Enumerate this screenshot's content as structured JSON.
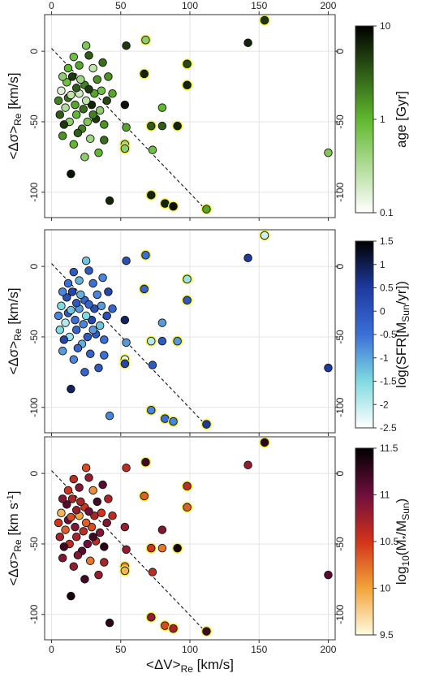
{
  "chart_data": {
    "type": "scatter",
    "x_axis": {
      "label": "<ΔV>",
      "label_sub": "Re",
      "label_unit": " [km/s]",
      "range": [
        -5,
        205
      ],
      "ticks": [
        0,
        50,
        100,
        150,
        200
      ],
      "tick_labels": [
        "0",
        "50",
        "100",
        "150",
        "200"
      ]
    },
    "y_axis": {
      "range": [
        -118,
        26
      ],
      "ticks": [
        0,
        -50,
        -100
      ],
      "tick_labels": [
        "0",
        "-50",
        "-100"
      ]
    },
    "grid": true,
    "reference_line": {
      "style": "dashed",
      "from": [
        0,
        2
      ],
      "to": [
        112,
        -113
      ]
    },
    "panels": [
      {
        "ylabel": "<Δσ>",
        "ylabel_sub": "Re",
        "ylabel_unit": " [km/s]",
        "colorbar": {
          "label": "age [Gyr]",
          "scale": "log",
          "range": [
            0.1,
            10
          ],
          "ticks": [
            "0.1",
            "1",
            "10"
          ],
          "colors": [
            "#ffffff",
            "#5fb82d",
            "#000000"
          ]
        }
      },
      {
        "ylabel": "<Δσ>",
        "ylabel_sub": "Re",
        "ylabel_unit": " [km/s]",
        "colorbar": {
          "label": "log(SFR[M",
          "label_sub": "Sun",
          "label_unit": "/yr])",
          "scale": "linear",
          "range": [
            -2.5,
            1.5
          ],
          "ticks": [
            "-2.5",
            "-2",
            "-1.5",
            "-1",
            "-0.5",
            "0",
            "0.5",
            "1",
            "1.5"
          ],
          "colors": [
            "#ffffff",
            "#7fdbe0",
            "#3b6fd8",
            "#1e3aa0",
            "#000000"
          ]
        }
      },
      {
        "ylabel": "<Δσ>",
        "ylabel_sub": "Re",
        "ylabel_unit": " [km s",
        "ylabel_sup": "-1",
        "ylabel_unit2": "]",
        "colorbar": {
          "label": "log",
          "label_sub": "10",
          "label_unit": "(M",
          "label_sub2": "*",
          "label_unit2": "/M",
          "label_sub3": "Sun",
          "label_unit3": ")",
          "scale": "linear",
          "range": [
            9.5,
            11.5
          ],
          "ticks": [
            "9.5",
            "10",
            "10.5",
            "11",
            "11.5"
          ],
          "colors": [
            "#fffbe0",
            "#f2a43a",
            "#d3331a",
            "#6e0f3c",
            "#000000"
          ]
        }
      }
    ],
    "series": [
      {
        "points": [
          [
            154,
            22,
            0.85,
            0.1,
            0.9,
            true
          ],
          [
            142,
            6,
            0.9,
            0.75,
            0.65,
            false
          ],
          [
            200,
            -72,
            0.4,
            0.75,
            0.8,
            false
          ],
          [
            98,
            -9,
            0.8,
            0.2,
            0.55,
            true
          ],
          [
            98,
            -24,
            0.9,
            0.6,
            0.4,
            true
          ],
          [
            72,
            -53,
            0.75,
            0.15,
            0.5,
            true
          ],
          [
            54,
            -54,
            0.55,
            0.4,
            0.65,
            false
          ],
          [
            53,
            -66,
            0.3,
            0.05,
            0.3,
            true
          ],
          [
            53,
            -69,
            0.35,
            0.7,
            0.2,
            true
          ],
          [
            53,
            -38,
            0.95,
            0.85,
            0.65,
            false
          ],
          [
            80,
            -40,
            0.5,
            0.4,
            0.7,
            false
          ],
          [
            80,
            -53,
            0.75,
            0.6,
            0.35,
            false
          ],
          [
            67,
            -16,
            0.9,
            0.55,
            0.4,
            true
          ],
          [
            91,
            -53,
            0.9,
            0.4,
            0.95,
            true
          ],
          [
            73,
            -70,
            0.45,
            0.6,
            0.55,
            false
          ],
          [
            68,
            8,
            0.35,
            0.5,
            0.85,
            true
          ],
          [
            54,
            4,
            0.85,
            0.65,
            0.55,
            false
          ],
          [
            72,
            -102,
            0.9,
            0.45,
            0.65,
            true
          ],
          [
            82,
            -108,
            0.9,
            0.5,
            0.45,
            true
          ],
          [
            88,
            -110,
            0.95,
            0.45,
            0.6,
            true
          ],
          [
            112,
            -112,
            0.55,
            0.75,
            0.85,
            true
          ],
          [
            42,
            -106,
            0.9,
            0.45,
            0.9,
            false
          ],
          [
            14,
            -87,
            0.95,
            0.85,
            0.95,
            false
          ],
          [
            24,
            -75,
            0.35,
            0.55,
            0.85,
            false
          ],
          [
            38,
            -63,
            0.7,
            0.5,
            0.6,
            false
          ],
          [
            8,
            -60,
            0.6,
            0.4,
            0.7,
            false
          ],
          [
            13,
            -50,
            0.35,
            0.2,
            0.55,
            false
          ],
          [
            10,
            -40,
            0.25,
            0.15,
            0.4,
            false
          ],
          [
            12,
            -33,
            0.7,
            0.6,
            0.75,
            false
          ],
          [
            7,
            -28,
            0.1,
            0.25,
            0.2,
            false
          ],
          [
            15,
            -18,
            0.85,
            0.7,
            0.6,
            false
          ],
          [
            20,
            -10,
            0.55,
            0.35,
            0.7,
            false
          ],
          [
            25,
            4,
            0.4,
            0.3,
            0.45,
            false
          ],
          [
            27,
            -3,
            0.75,
            0.6,
            0.65,
            false
          ],
          [
            30,
            -12,
            0.2,
            0.5,
            0.3,
            false
          ],
          [
            33,
            -20,
            0.6,
            0.45,
            0.85,
            false
          ],
          [
            36,
            -28,
            0.45,
            0.4,
            0.5,
            false
          ],
          [
            40,
            -35,
            0.8,
            0.65,
            0.7,
            false
          ],
          [
            18,
            -45,
            0.5,
            0.55,
            0.6,
            false
          ],
          [
            22,
            -55,
            0.65,
            0.35,
            0.8,
            false
          ],
          [
            28,
            -62,
            0.3,
            0.55,
            0.35,
            false
          ],
          [
            32,
            -48,
            0.85,
            0.6,
            0.55,
            false
          ],
          [
            16,
            -66,
            0.5,
            0.45,
            0.65,
            false
          ],
          [
            20,
            -30,
            0.15,
            0.4,
            0.25,
            false
          ],
          [
            24,
            -24,
            0.65,
            0.55,
            0.5,
            false
          ],
          [
            6,
            -45,
            0.75,
            0.25,
            0.6,
            false
          ],
          [
            11,
            -22,
            0.45,
            0.65,
            0.8,
            false
          ],
          [
            35,
            -42,
            0.35,
            0.3,
            0.7,
            false
          ],
          [
            29,
            -38,
            0.9,
            0.7,
            0.45,
            false
          ],
          [
            17,
            -38,
            0.55,
            0.5,
            0.7,
            false
          ],
          [
            23,
            -41,
            0.7,
            0.45,
            0.55,
            false
          ],
          [
            26,
            -50,
            0.4,
            0.6,
            0.75,
            false
          ],
          [
            38,
            -52,
            0.6,
            0.5,
            0.9,
            false
          ],
          [
            9,
            -52,
            0.85,
            0.7,
            0.85,
            false
          ],
          [
            14,
            -31,
            0.2,
            0.3,
            0.45,
            false
          ],
          [
            31,
            -30,
            0.55,
            0.65,
            0.6,
            false
          ],
          [
            19,
            -58,
            0.75,
            0.55,
            0.7,
            false
          ],
          [
            34,
            -72,
            0.5,
            0.6,
            0.65,
            false
          ],
          [
            5,
            -35,
            0.65,
            0.45,
            0.5,
            false
          ],
          [
            21,
            -20,
            0.3,
            0.35,
            0.6,
            false
          ],
          [
            27,
            -27,
            0.85,
            0.55,
            0.75,
            false
          ],
          [
            12,
            -12,
            0.5,
            0.5,
            0.5,
            false
          ],
          [
            37,
            -8,
            0.7,
            0.45,
            0.8,
            false
          ],
          [
            16,
            -4,
            0.45,
            0.6,
            0.55,
            false
          ],
          [
            41,
            -18,
            0.6,
            0.7,
            0.6,
            false
          ],
          [
            25,
            -35,
            0.2,
            0.25,
            0.4,
            false
          ],
          [
            18,
            -26,
            0.75,
            0.6,
            0.65,
            false
          ],
          [
            30,
            -45,
            0.65,
            0.4,
            0.85,
            false
          ],
          [
            44,
            -30,
            0.55,
            0.55,
            0.55,
            false
          ],
          [
            8,
            -18,
            0.35,
            0.45,
            0.7,
            false
          ]
        ]
      }
    ]
  }
}
